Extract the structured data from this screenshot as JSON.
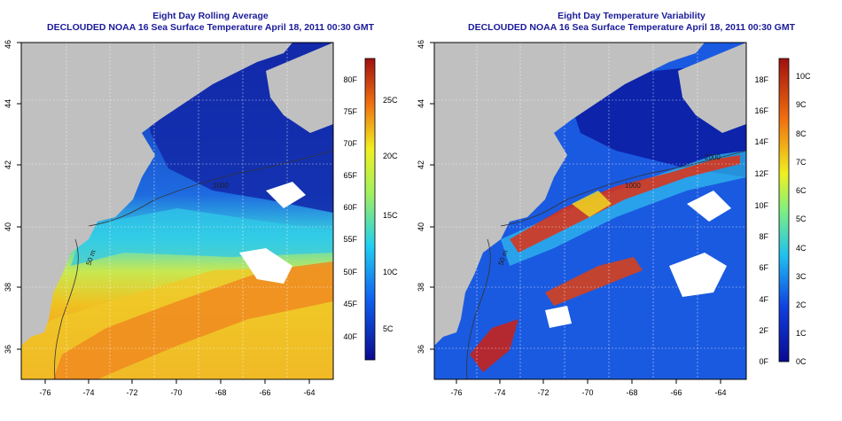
{
  "panels": [
    {
      "title": "Eight Day Rolling Average",
      "subtitle": "DECLOUDED NOAA 16 Sea Surface Temperature April 18, 2011 00:30 GMT",
      "lat_ticks": [
        "46",
        "44",
        "42",
        "40",
        "38",
        "36"
      ],
      "lon_ticks": [
        "-76",
        "-74",
        "-72",
        "-70",
        "-68",
        "-66",
        "-64"
      ],
      "colorbar_f": [
        "40F",
        "45F",
        "50F",
        "55F",
        "60F",
        "65F",
        "70F",
        "75F",
        "80F"
      ],
      "colorbar_c": [
        "5C",
        "10C",
        "15C",
        "20C",
        "25C"
      ],
      "contour_labels": [
        "50 m",
        "1000"
      ]
    },
    {
      "title": "Eight Day Temperature Variability",
      "subtitle": "DECLOUDED NOAA 16 Sea Surface Temperature April 18, 2011 00:30 GMT",
      "lat_ticks": [
        "46",
        "44",
        "42",
        "40",
        "38",
        "36"
      ],
      "lon_ticks": [
        "-76",
        "-74",
        "-72",
        "-70",
        "-68",
        "-66",
        "-64"
      ],
      "colorbar_f": [
        "0F",
        "2F",
        "4F",
        "6F",
        "8F",
        "10F",
        "12F",
        "14F",
        "16F",
        "18F"
      ],
      "colorbar_c": [
        "0C",
        "1C",
        "2C",
        "3C",
        "4C",
        "5C",
        "6C",
        "7C",
        "8C",
        "9C",
        "10C"
      ],
      "contour_labels": [
        "50 m",
        "1000",
        "2000"
      ]
    }
  ],
  "colors": {
    "land": "#c0c0c0",
    "title": "#1a1a9a",
    "cold": "#0a1aa8",
    "warm": "#f07010"
  }
}
